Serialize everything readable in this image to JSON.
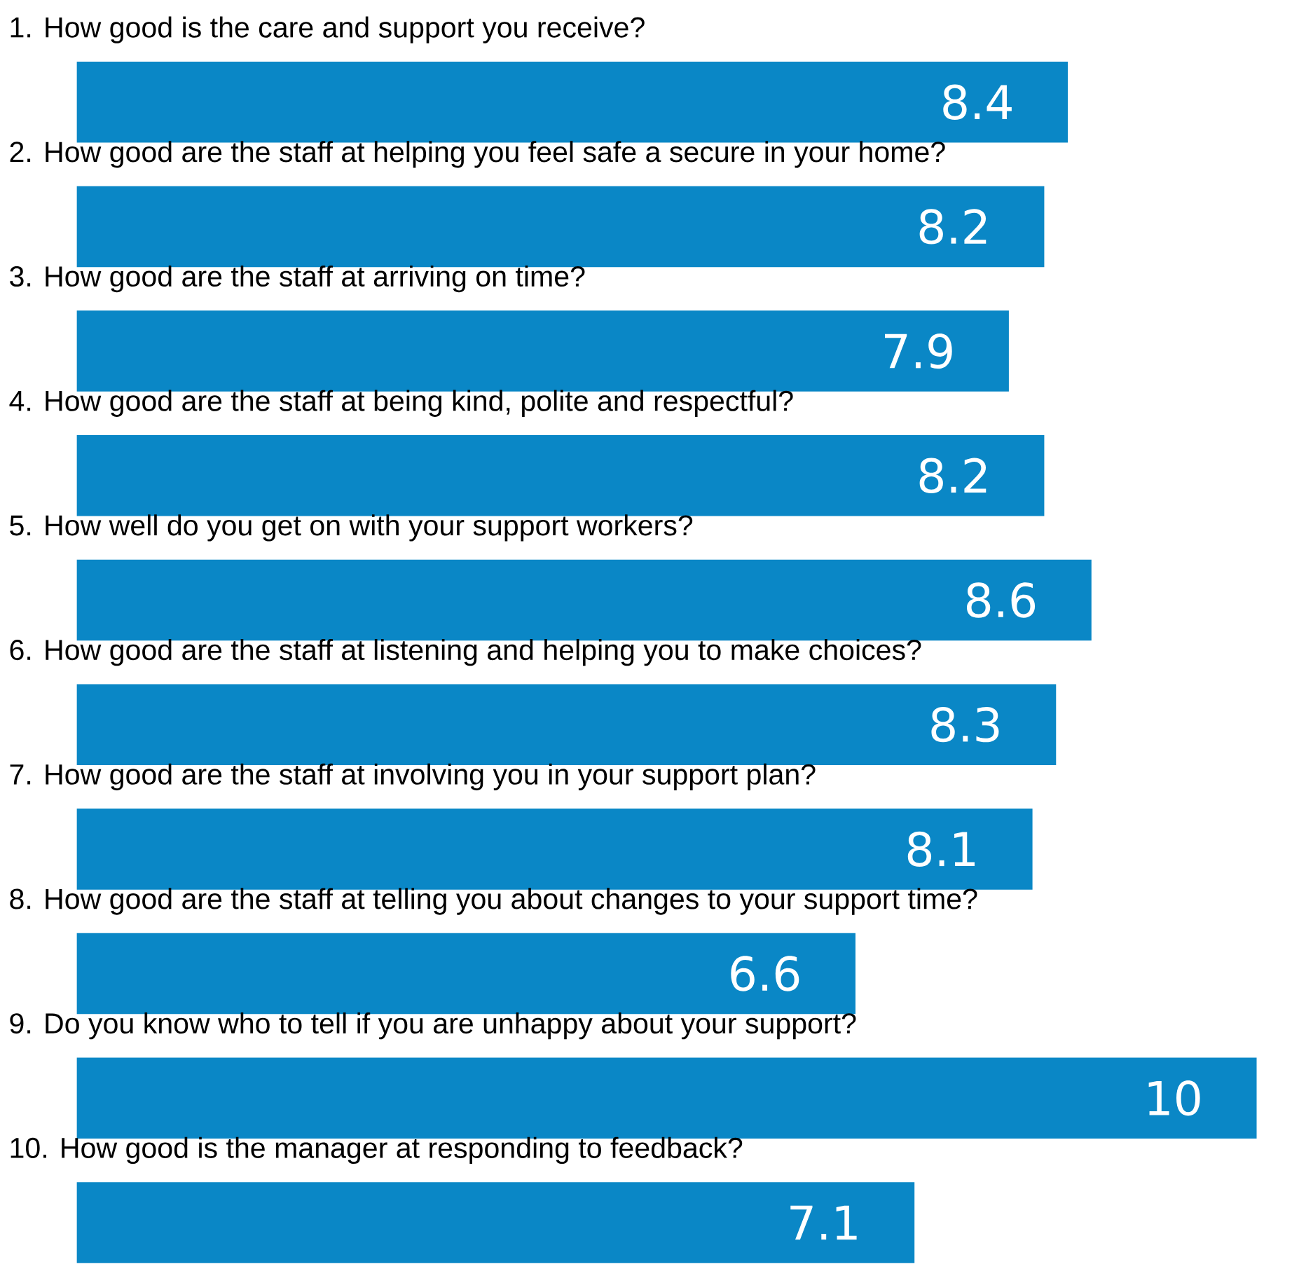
{
  "chart_data": {
    "type": "bar",
    "orientation": "horizontal",
    "data_labels": true,
    "color": "#0a87c6",
    "categories": [
      "1. How good is the care and support you receive?",
      "2. How good are the staff at helping you feel safe a secure in your home?",
      "3. How good are the staff at arriving on time?",
      "4. How good are the staff at being kind, polite and respectful?",
      "5. How well do you get on with your support workers?",
      "6. How good are the staff at listening and helping you to make choices?",
      "7. How good are the staff at involving you in your support plan?",
      "8. How good are the staff at telling you about changes to your support time?",
      "9. Do you know who to tell if you are unhappy about your support?",
      "10. How good is the manager at responding to feedback?"
    ],
    "values": [
      8.4,
      8.2,
      7.9,
      8.2,
      8.6,
      8.3,
      8.1,
      6.6,
      10,
      7.1
    ]
  }
}
